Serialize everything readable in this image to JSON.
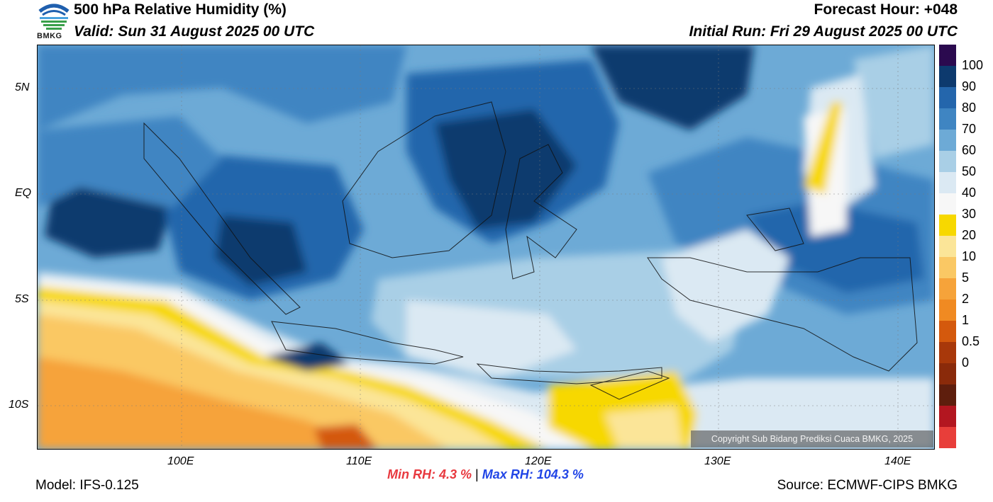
{
  "header": {
    "title": "500 hPa Relative Humidity (%)",
    "valid": "Valid: Sun 31 August 2025 00 UTC",
    "forecast_hour": "Forecast Hour: +048",
    "initial_run": "Initial Run: Fri 29 August 2025 00 UTC"
  },
  "logo": {
    "text": "BMKG",
    "icon": "bmkg-logo-icon"
  },
  "map": {
    "lat_labels": [
      "5N",
      "EQ",
      "5S",
      "10S"
    ],
    "lon_labels": [
      "100E",
      "110E",
      "120E",
      "130E",
      "140E"
    ],
    "copyright": "Copyright Sub Bidang Prediksi Cuaca BMKG, 2025"
  },
  "colorbar": {
    "labels": [
      "100",
      "90",
      "80",
      "70",
      "60",
      "50",
      "40",
      "30",
      "20",
      "10",
      "5",
      "2",
      "1",
      "0.5",
      "0"
    ],
    "colors": [
      "#2b0a4f",
      "#0d3a6e",
      "#2466ac",
      "#3f85c2",
      "#6daad6",
      "#a9cfe6",
      "#dbe9f3",
      "#f7f7f7",
      "#f7d800",
      "#fbe598",
      "#fac864",
      "#f6a33a",
      "#f08a22",
      "#d4590d",
      "#a8380a",
      "#8a2a0a",
      "#5e1e0d",
      "#b31620",
      "#e83e3a"
    ]
  },
  "stats": {
    "min_label": "Min RH:",
    "min_value": "4.3 %",
    "separator": "|",
    "max_label": "Max RH:",
    "max_value": "104.3 %"
  },
  "footer": {
    "model": "Model: IFS-0.125",
    "source": "Source: ECMWF-CIPS BMKG"
  }
}
